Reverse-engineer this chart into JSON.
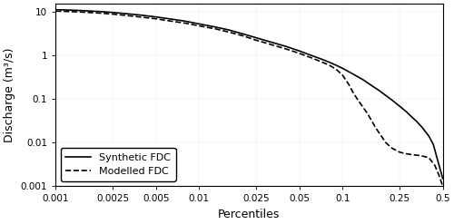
{
  "title": "",
  "xlabel": "Percentiles",
  "ylabel": "Discharge (m³/s)",
  "xlim": [
    0.001,
    0.5
  ],
  "ylim": [
    0.001,
    15
  ],
  "xticks": [
    0.001,
    0.0025,
    0.005,
    0.01,
    0.025,
    0.05,
    0.1,
    0.25,
    0.5
  ],
  "xtick_labels": [
    "0.001",
    "0.0025",
    "0.005",
    "0.01",
    "0.025",
    "0.05",
    "0.1",
    "0.25",
    "0.5"
  ],
  "yticks": [
    0.001,
    0.01,
    0.1,
    1,
    10
  ],
  "ytick_labels": [
    "0.001",
    "0.01",
    "0.1",
    "1",
    "10"
  ],
  "synthetic_x": [
    0.001,
    0.0012,
    0.0015,
    0.002,
    0.0025,
    0.003,
    0.004,
    0.005,
    0.006,
    0.008,
    0.01,
    0.013,
    0.016,
    0.02,
    0.025,
    0.03,
    0.04,
    0.05,
    0.06,
    0.07,
    0.08,
    0.09,
    0.1,
    0.12,
    0.14,
    0.16,
    0.18,
    0.2,
    0.22,
    0.25,
    0.28,
    0.3,
    0.33,
    0.36,
    0.4,
    0.43,
    0.46,
    0.5
  ],
  "synthetic_y": [
    11.0,
    10.8,
    10.5,
    10.0,
    9.5,
    9.0,
    8.2,
    7.5,
    6.9,
    6.0,
    5.2,
    4.4,
    3.8,
    3.1,
    2.5,
    2.1,
    1.6,
    1.25,
    1.0,
    0.83,
    0.7,
    0.59,
    0.5,
    0.36,
    0.27,
    0.2,
    0.155,
    0.12,
    0.095,
    0.068,
    0.05,
    0.04,
    0.03,
    0.022,
    0.014,
    0.009,
    0.004,
    0.0015
  ],
  "modelled_x": [
    0.001,
    0.0012,
    0.0015,
    0.002,
    0.0025,
    0.003,
    0.004,
    0.005,
    0.006,
    0.008,
    0.01,
    0.013,
    0.016,
    0.02,
    0.025,
    0.03,
    0.04,
    0.05,
    0.06,
    0.07,
    0.08,
    0.09,
    0.1,
    0.11,
    0.12,
    0.13,
    0.15,
    0.17,
    0.2,
    0.22,
    0.25,
    0.28,
    0.3,
    0.35,
    0.4,
    0.44,
    0.47,
    0.5
  ],
  "modelled_y": [
    10.2,
    10.0,
    9.7,
    9.2,
    8.7,
    8.2,
    7.4,
    6.8,
    6.2,
    5.4,
    4.7,
    4.0,
    3.4,
    2.8,
    2.2,
    1.85,
    1.4,
    1.1,
    0.88,
    0.72,
    0.6,
    0.48,
    0.35,
    0.22,
    0.13,
    0.088,
    0.045,
    0.022,
    0.01,
    0.0075,
    0.006,
    0.0055,
    0.0053,
    0.005,
    0.0045,
    0.003,
    0.0018,
    0.001
  ],
  "line_color": "#000000",
  "legend_labels": [
    "Synthetic FDC",
    "Modelled FDC"
  ],
  "legend_loc": "lower left",
  "background_color": "#ffffff",
  "figsize": [
    5.0,
    2.47
  ],
  "dpi": 100
}
